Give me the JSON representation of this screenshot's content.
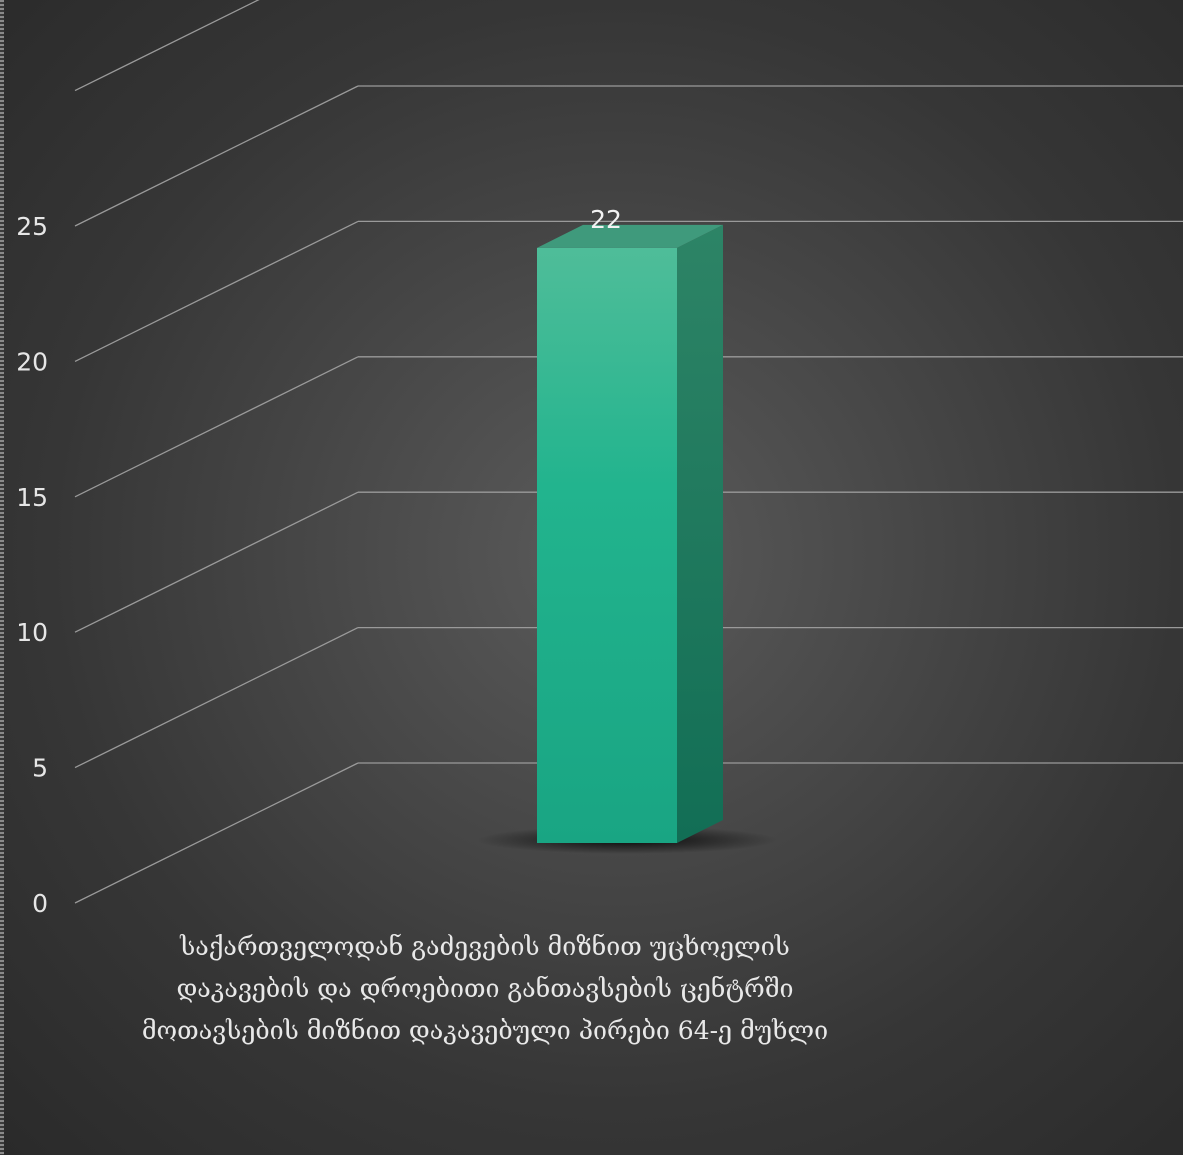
{
  "chart_data": {
    "type": "bar",
    "style": "3d-column",
    "categories": [
      "საქართველოდან  გაძევების მიზნით უცხოელის დაკავების და დროებითი განთავსების ცენტრში მოთავსების მიზნით დაკავებული პირები  64-ე მუხლი"
    ],
    "series": [
      {
        "values": [
          22
        ],
        "color": "#1fae8a"
      }
    ],
    "data_labels": [
      "22"
    ],
    "yticks": [
      "0",
      "5",
      "10",
      "15",
      "20",
      "25"
    ],
    "ylim": [
      0,
      25
    ],
    "grid": true,
    "legend": "none",
    "title": "",
    "xlabel": "",
    "ylabel": ""
  },
  "colors": {
    "background": "#3d3d3d",
    "gridline": "#9a9a9a",
    "bar_front": "#1fae8a",
    "bar_side": "#157a60",
    "bar_top": "#3f9a7c"
  }
}
